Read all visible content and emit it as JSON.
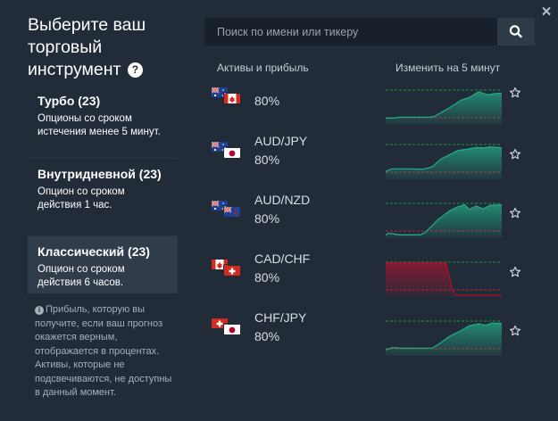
{
  "panel": {
    "title": "Выберите ваш торговый инструмент"
  },
  "categories": [
    {
      "name": "Турбо (23)",
      "desc": "Опционы со сроком истечения менее 5 минут."
    },
    {
      "name": "Внутридневной (23)",
      "desc": "Опцион со сроком действия 1 час."
    },
    {
      "name": "Классический (23)",
      "desc": "Опцион со сроком действия 6 часов."
    }
  ],
  "info_text": "Прибыль, которую вы получите, если ваш прогноз окажется верным, отображается в процентах. Активы, которые не подсвечиваются, не доступны в данный момент.",
  "search": {
    "placeholder": "Поиск по имени или тикеру"
  },
  "columns": {
    "assets": "Активы и прибыль",
    "change": "Изменить на 5 минут"
  },
  "assets": [
    {
      "name": "",
      "payout": "80%",
      "flags": [
        "au",
        "ca"
      ],
      "trend": "up"
    },
    {
      "name": "AUD/JPY",
      "payout": "80%",
      "flags": [
        "au",
        "jp"
      ],
      "trend": "up"
    },
    {
      "name": "AUD/NZD",
      "payout": "80%",
      "flags": [
        "au",
        "nz"
      ],
      "trend": "up"
    },
    {
      "name": "CAD/CHF",
      "payout": "80%",
      "flags": [
        "ca",
        "ch"
      ],
      "trend": "down"
    },
    {
      "name": "CHF/JPY",
      "payout": "80%",
      "flags": [
        "ch",
        "jp"
      ],
      "trend": "up"
    }
  ],
  "colors": {
    "up": "#22a884",
    "down": "#a3122e",
    "background": "#222c38"
  },
  "icons": {
    "close": "close-icon",
    "help": "help-icon",
    "info": "info-icon",
    "search": "search-icon",
    "favorite": "star-icon"
  }
}
